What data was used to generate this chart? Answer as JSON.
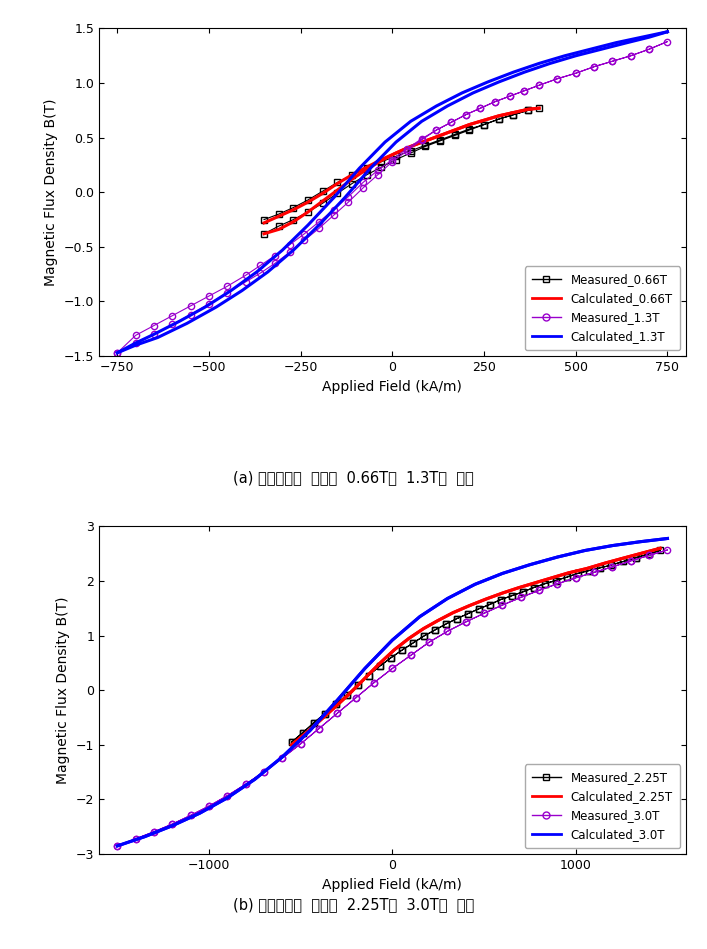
{
  "fig_width": 7.07,
  "fig_height": 9.49,
  "background_color": "#ffffff",
  "plot_a": {
    "title": "(a) 자속밀도의  크기가  0.66T와  1.3T인  경우",
    "xlabel": "Applied Field (kA/m)",
    "ylabel": "Magnetic Flux Density B(T)",
    "xlim": [
      -800,
      800
    ],
    "ylim": [
      -1.5,
      1.5
    ],
    "xticks": [
      -750,
      -500,
      -250,
      0,
      250,
      500,
      750
    ],
    "yticks": [
      -1.5,
      -1.0,
      -0.5,
      0.0,
      0.5,
      1.0,
      1.5
    ],
    "measured_066T_x": [
      -350,
      -310,
      -270,
      -230,
      -190,
      -150,
      -110,
      -70,
      -30,
      10,
      50,
      90,
      130,
      170,
      210,
      250,
      290,
      330,
      370,
      400,
      370,
      330,
      290,
      250,
      210,
      170,
      130,
      90,
      50,
      10,
      -30,
      -70,
      -110,
      -150,
      -190,
      -230,
      -270,
      -310,
      -350
    ],
    "measured_066T_y": [
      -0.25,
      -0.2,
      -0.14,
      -0.07,
      0.01,
      0.09,
      0.16,
      0.22,
      0.28,
      0.33,
      0.38,
      0.43,
      0.48,
      0.53,
      0.58,
      0.62,
      0.67,
      0.71,
      0.75,
      0.77,
      0.75,
      0.71,
      0.67,
      0.62,
      0.57,
      0.52,
      0.47,
      0.42,
      0.36,
      0.3,
      0.23,
      0.16,
      0.08,
      -0.01,
      -0.1,
      -0.18,
      -0.25,
      -0.31,
      -0.38
    ],
    "calc_066T_upper_x": [
      -350,
      -310,
      -270,
      -230,
      -190,
      -150,
      -110,
      -70,
      -30,
      10,
      50,
      90,
      130,
      170,
      210,
      250,
      290,
      330,
      370,
      400
    ],
    "calc_066T_upper_y": [
      -0.28,
      -0.22,
      -0.16,
      -0.09,
      -0.01,
      0.08,
      0.16,
      0.23,
      0.3,
      0.36,
      0.42,
      0.47,
      0.52,
      0.57,
      0.62,
      0.66,
      0.7,
      0.73,
      0.76,
      0.77
    ],
    "calc_066T_lower_x": [
      400,
      370,
      330,
      290,
      250,
      210,
      170,
      130,
      90,
      50,
      10,
      -30,
      -70,
      -110,
      -150,
      -190,
      -230,
      -270,
      -310,
      -350
    ],
    "calc_066T_lower_y": [
      0.77,
      0.76,
      0.73,
      0.7,
      0.66,
      0.62,
      0.57,
      0.52,
      0.47,
      0.42,
      0.36,
      0.29,
      0.21,
      0.12,
      0.02,
      -0.08,
      -0.18,
      -0.27,
      -0.34,
      -0.38
    ],
    "measured_13T_x": [
      -750,
      -700,
      -650,
      -600,
      -550,
      -500,
      -450,
      -400,
      -360,
      -320,
      -280,
      -240,
      -200,
      -160,
      -120,
      -80,
      -40,
      0,
      40,
      80,
      120,
      160,
      200,
      240,
      280,
      320,
      360,
      400,
      450,
      500,
      550,
      600,
      650,
      700,
      750,
      700,
      650,
      600,
      550,
      500,
      450,
      400,
      360,
      320,
      280,
      240,
      200,
      160,
      120,
      80,
      40,
      0,
      -40,
      -80,
      -120,
      -160,
      -200,
      -240,
      -280,
      -320,
      -360,
      -400,
      -450,
      -500,
      -550,
      -600,
      -650,
      -700,
      -750
    ],
    "measured_13T_y": [
      -1.47,
      -1.38,
      -1.3,
      -1.21,
      -1.12,
      -1.02,
      -0.92,
      -0.82,
      -0.74,
      -0.65,
      -0.55,
      -0.44,
      -0.33,
      -0.21,
      -0.09,
      0.04,
      0.16,
      0.28,
      0.38,
      0.48,
      0.57,
      0.64,
      0.71,
      0.77,
      0.83,
      0.88,
      0.93,
      0.98,
      1.04,
      1.09,
      1.15,
      1.2,
      1.25,
      1.31,
      1.38,
      1.31,
      1.25,
      1.2,
      1.15,
      1.09,
      1.04,
      0.98,
      0.93,
      0.88,
      0.83,
      0.77,
      0.71,
      0.64,
      0.57,
      0.49,
      0.4,
      0.3,
      0.2,
      0.09,
      -0.04,
      -0.16,
      -0.27,
      -0.38,
      -0.48,
      -0.58,
      -0.67,
      -0.76,
      -0.86,
      -0.95,
      -1.04,
      -1.13,
      -1.22,
      -1.31,
      -1.47
    ],
    "calc_13T_upper_x": [
      -750,
      -700,
      -650,
      -580,
      -510,
      -440,
      -370,
      -300,
      -230,
      -160,
      -90,
      -20,
      50,
      120,
      190,
      260,
      330,
      400,
      470,
      540,
      610,
      680,
      750
    ],
    "calc_13T_upper_y": [
      -1.47,
      -1.38,
      -1.3,
      -1.18,
      -1.05,
      -0.9,
      -0.73,
      -0.53,
      -0.3,
      -0.05,
      0.22,
      0.46,
      0.65,
      0.79,
      0.91,
      1.01,
      1.1,
      1.18,
      1.25,
      1.31,
      1.37,
      1.42,
      1.47
    ],
    "calc_13T_lower_x": [
      750,
      700,
      640,
      570,
      500,
      430,
      360,
      290,
      220,
      150,
      80,
      10,
      -60,
      -130,
      -200,
      -270,
      -340,
      -410,
      -480,
      -560,
      -640,
      -700,
      -750
    ],
    "calc_13T_lower_y": [
      1.47,
      1.42,
      1.37,
      1.31,
      1.25,
      1.18,
      1.1,
      1.01,
      0.91,
      0.79,
      0.65,
      0.46,
      0.22,
      -0.05,
      -0.3,
      -0.53,
      -0.73,
      -0.9,
      -1.05,
      -1.2,
      -1.33,
      -1.4,
      -1.47
    ],
    "color_066T_measured": "#000000",
    "color_066T_calc": "#ff0000",
    "color_13T_measured": "#9900cc",
    "color_13T_calc": "#0000ff"
  },
  "plot_b": {
    "title": "(b) 자속밀도의  크기가  2.25T와  3.0T인  경우",
    "xlabel": "Applied Field (kA/m)",
    "ylabel": "Magnetic Flux Density B(T)",
    "xlim": [
      -1600,
      1600
    ],
    "ylim": [
      -3.0,
      3.0
    ],
    "xticks": [
      -1000,
      0,
      1000
    ],
    "yticks": [
      -3,
      -2,
      -1,
      0,
      1,
      2,
      3
    ],
    "measured_225T_x": [
      -550,
      -490,
      -430,
      -370,
      -310,
      -250,
      -190,
      -130,
      -70,
      -10,
      50,
      110,
      170,
      230,
      290,
      350,
      410,
      470,
      530,
      590,
      650,
      710,
      770,
      830,
      890,
      950,
      1010,
      1070,
      1130,
      1190,
      1260,
      1330,
      1400,
      1460,
      1400,
      1330,
      1260,
      1190,
      1130,
      1070,
      1010,
      950,
      890,
      830,
      770,
      710,
      650,
      590,
      530,
      470,
      410,
      350,
      290,
      230,
      170,
      110,
      50,
      -10,
      -70,
      -130,
      -190,
      -250,
      -310,
      -370,
      -430,
      -490,
      -550
    ],
    "measured_225T_y": [
      -0.95,
      -0.78,
      -0.6,
      -0.43,
      -0.26,
      -0.09,
      0.09,
      0.27,
      0.44,
      0.59,
      0.73,
      0.86,
      0.99,
      1.1,
      1.21,
      1.31,
      1.4,
      1.49,
      1.57,
      1.66,
      1.73,
      1.8,
      1.88,
      1.95,
      2.01,
      2.07,
      2.14,
      2.19,
      2.24,
      2.29,
      2.36,
      2.43,
      2.5,
      2.56,
      2.5,
      2.43,
      2.36,
      2.29,
      2.24,
      2.19,
      2.14,
      2.07,
      2.01,
      1.95,
      1.88,
      1.8,
      1.73,
      1.66,
      1.57,
      1.49,
      1.4,
      1.31,
      1.21,
      1.1,
      0.99,
      0.86,
      0.73,
      0.59,
      0.44,
      0.27,
      0.09,
      -0.09,
      -0.26,
      -0.43,
      -0.6,
      -0.78,
      -0.95
    ],
    "calc_225T_upper_x": [
      -550,
      -470,
      -390,
      -310,
      -230,
      -150,
      -70,
      10,
      90,
      170,
      250,
      330,
      420,
      510,
      600,
      690,
      780,
      870,
      960,
      1060,
      1160,
      1270,
      1370,
      1460
    ],
    "calc_225T_upper_y": [
      -1.0,
      -0.78,
      -0.54,
      -0.3,
      -0.05,
      0.22,
      0.49,
      0.74,
      0.95,
      1.13,
      1.28,
      1.42,
      1.55,
      1.67,
      1.78,
      1.88,
      1.97,
      2.06,
      2.15,
      2.23,
      2.33,
      2.43,
      2.52,
      2.6
    ],
    "calc_225T_lower_x": [
      1460,
      1370,
      1270,
      1160,
      1060,
      960,
      870,
      780,
      690,
      600,
      510,
      420,
      330,
      250,
      170,
      90,
      10,
      -70,
      -150,
      -230,
      -310,
      -390,
      -470,
      -550
    ],
    "calc_225T_lower_y": [
      2.6,
      2.52,
      2.43,
      2.33,
      2.23,
      2.15,
      2.06,
      1.97,
      1.88,
      1.78,
      1.67,
      1.55,
      1.42,
      1.28,
      1.13,
      0.95,
      0.74,
      0.49,
      0.22,
      -0.05,
      -0.3,
      -0.54,
      -0.78,
      -1.0
    ],
    "measured_3T_x": [
      -1500,
      -1400,
      -1300,
      -1200,
      -1100,
      -1000,
      -900,
      -800,
      -700,
      -600,
      -500,
      -400,
      -300,
      -200,
      -100,
      0,
      100,
      200,
      300,
      400,
      500,
      600,
      700,
      800,
      900,
      1000,
      1100,
      1200,
      1300,
      1400,
      1500,
      1400,
      1300,
      1200,
      1100,
      1000,
      900,
      800,
      700,
      600,
      500,
      400,
      300,
      200,
      100,
      0,
      -100,
      -200,
      -300,
      -400,
      -500,
      -600,
      -700,
      -800,
      -900,
      -1000,
      -1100,
      -1200,
      -1300,
      -1400,
      -1500
    ],
    "measured_3T_y": [
      -2.85,
      -2.72,
      -2.59,
      -2.45,
      -2.29,
      -2.12,
      -1.93,
      -1.72,
      -1.49,
      -1.24,
      -0.98,
      -0.7,
      -0.42,
      -0.14,
      0.14,
      0.4,
      0.64,
      0.88,
      1.08,
      1.25,
      1.41,
      1.56,
      1.7,
      1.83,
      1.95,
      2.06,
      2.16,
      2.26,
      2.37,
      2.47,
      2.57,
      2.47,
      2.37,
      2.26,
      2.16,
      2.06,
      1.95,
      1.83,
      1.7,
      1.56,
      1.41,
      1.25,
      1.08,
      0.88,
      0.64,
      0.4,
      0.14,
      -0.14,
      -0.42,
      -0.7,
      -0.98,
      -1.24,
      -1.49,
      -1.72,
      -1.93,
      -2.12,
      -2.29,
      -2.45,
      -2.59,
      -2.72,
      -2.85
    ],
    "calc_3T_upper_x": [
      -1500,
      -1350,
      -1200,
      -1050,
      -900,
      -750,
      -600,
      -450,
      -300,
      -150,
      0,
      150,
      300,
      450,
      600,
      750,
      900,
      1050,
      1200,
      1350,
      1500
    ],
    "calc_3T_upper_y": [
      -2.85,
      -2.68,
      -2.48,
      -2.25,
      -1.97,
      -1.63,
      -1.22,
      -0.74,
      -0.18,
      0.4,
      0.92,
      1.35,
      1.68,
      1.94,
      2.14,
      2.3,
      2.44,
      2.56,
      2.65,
      2.72,
      2.78
    ],
    "calc_3T_lower_x": [
      1500,
      1350,
      1200,
      1050,
      900,
      750,
      600,
      450,
      300,
      150,
      0,
      -150,
      -300,
      -450,
      -600,
      -750,
      -900,
      -1050,
      -1200,
      -1350,
      -1500
    ],
    "calc_3T_lower_y": [
      2.78,
      2.72,
      2.65,
      2.56,
      2.44,
      2.3,
      2.14,
      1.94,
      1.68,
      1.35,
      0.92,
      0.4,
      -0.18,
      -0.74,
      -1.22,
      -1.63,
      -1.97,
      -2.25,
      -2.48,
      -2.68,
      -2.85
    ],
    "color_225T_measured": "#000000",
    "color_225T_calc": "#ff0000",
    "color_3T_measured": "#9900cc",
    "color_3T_calc": "#0000ff"
  }
}
